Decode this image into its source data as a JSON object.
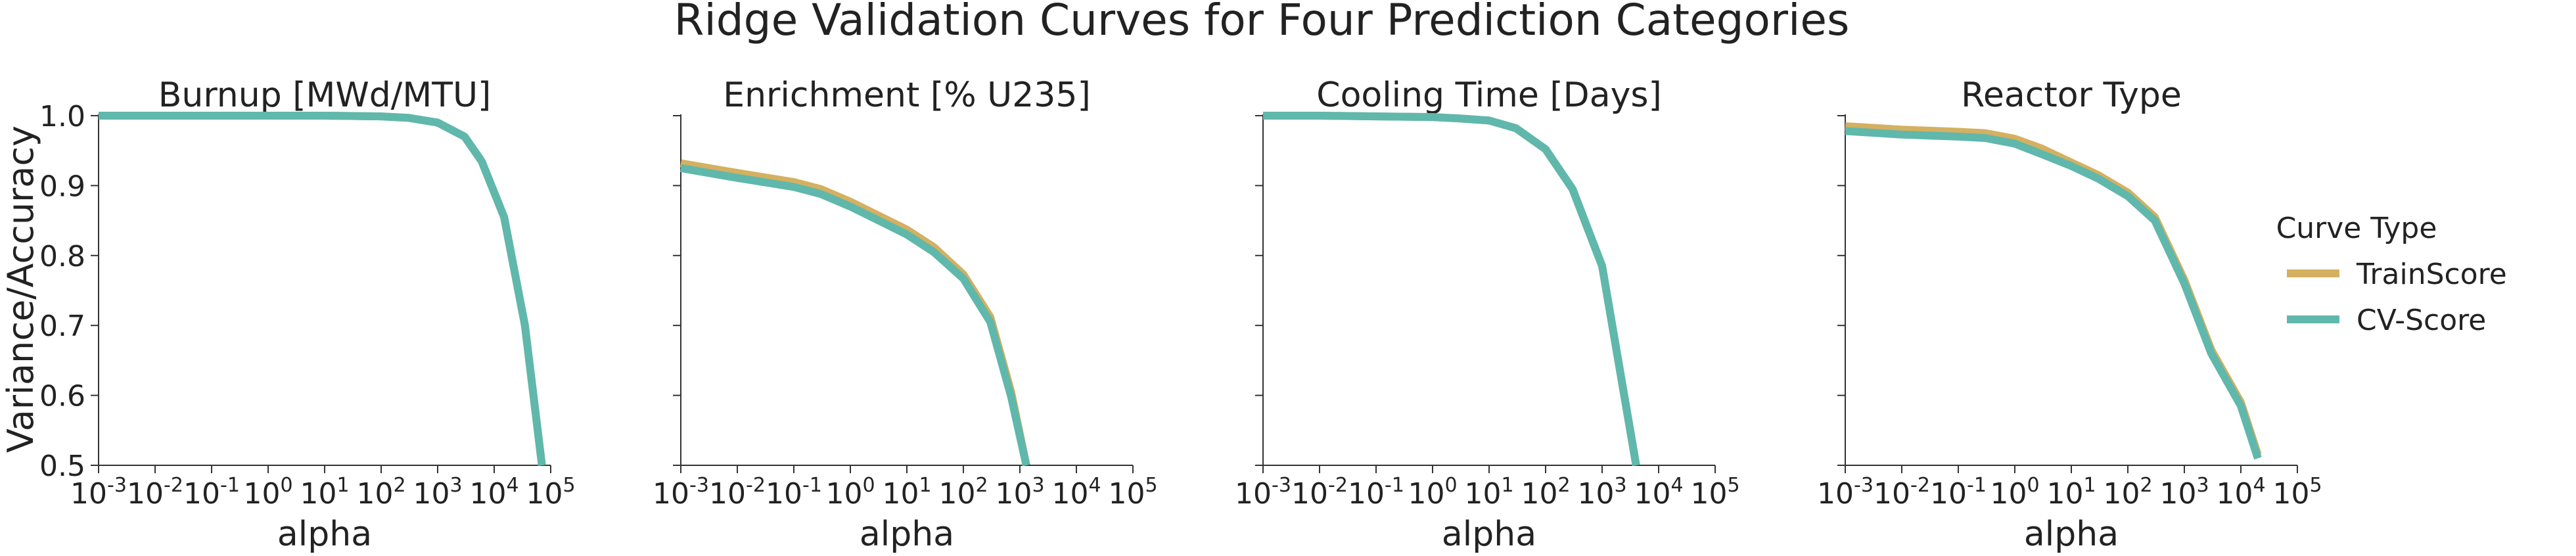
{
  "figure": {
    "title": "Ridge Validation Curves for Four Prediction Categories",
    "shared_ylabel": "Variance/Accuracy"
  },
  "legend": {
    "title": "Curve Type",
    "placement": "right",
    "entries": [
      {
        "label": "TrainScore",
        "color": "#d4b061"
      },
      {
        "label": "CV-Score",
        "color": "#5fb8ab"
      }
    ]
  },
  "chart_data": [
    {
      "type": "line",
      "title": "Burnup [MWd/MTU]",
      "xlabel": "alpha",
      "ylabel": "Variance/Accuracy",
      "xscale": "log",
      "xlim": [
        0.001,
        100000
      ],
      "ylim": [
        0.5,
        1.0
      ],
      "x_ticks": [
        "10^-3",
        "10^-2",
        "10^-1",
        "10^0",
        "10^1",
        "10^2",
        "10^3",
        "10^4",
        "10^5"
      ],
      "y_ticks": [
        "0.5",
        "0.6",
        "0.7",
        "0.8",
        "0.9",
        "1.0"
      ],
      "grid": false,
      "series": [
        {
          "name": "TrainScore",
          "color": "#d4b061",
          "x": [
            0.001,
            0.01,
            0.1,
            1,
            10,
            100,
            300,
            1000,
            3000,
            6000,
            15000,
            35000,
            70000
          ],
          "y": [
            1.0,
            1.0,
            1.0,
            1.0,
            1.0,
            0.999,
            0.997,
            0.99,
            0.97,
            0.935,
            0.855,
            0.7,
            0.5
          ]
        },
        {
          "name": "CV-Score",
          "color": "#5fb8ab",
          "x": [
            0.001,
            0.01,
            0.1,
            1,
            10,
            100,
            300,
            1000,
            3000,
            6000,
            15000,
            35000,
            70000
          ],
          "y": [
            1.0,
            1.0,
            1.0,
            1.0,
            1.0,
            0.999,
            0.997,
            0.99,
            0.97,
            0.935,
            0.855,
            0.7,
            0.5
          ]
        }
      ]
    },
    {
      "type": "line",
      "title": "Enrichment [% U235]",
      "xlabel": "alpha",
      "xscale": "log",
      "xlim": [
        0.001,
        100000
      ],
      "ylim": [
        0.5,
        1.0
      ],
      "x_ticks": [
        "10^-3",
        "10^-2",
        "10^-1",
        "10^0",
        "10^1",
        "10^2",
        "10^3",
        "10^4",
        "10^5"
      ],
      "grid": false,
      "series": [
        {
          "name": "TrainScore",
          "color": "#d4b061",
          "x": [
            0.001,
            0.01,
            0.1,
            0.3,
            1,
            3,
            10,
            30,
            100,
            300,
            700,
            1300
          ],
          "y": [
            0.932,
            0.918,
            0.905,
            0.895,
            0.877,
            0.858,
            0.837,
            0.812,
            0.773,
            0.712,
            0.605,
            0.5
          ]
        },
        {
          "name": "CV-Score",
          "color": "#5fb8ab",
          "x": [
            0.001,
            0.01,
            0.1,
            0.3,
            1,
            3,
            10,
            30,
            100,
            300,
            700,
            1300
          ],
          "y": [
            0.925,
            0.911,
            0.898,
            0.888,
            0.87,
            0.851,
            0.83,
            0.805,
            0.767,
            0.705,
            0.598,
            0.5
          ]
        }
      ]
    },
    {
      "type": "line",
      "title": "Cooling Time [Days]",
      "xlabel": "alpha",
      "xscale": "log",
      "xlim": [
        0.001,
        100000
      ],
      "ylim": [
        0.5,
        1.0
      ],
      "x_ticks": [
        "10^-3",
        "10^-2",
        "10^-1",
        "10^0",
        "10^1",
        "10^2",
        "10^3",
        "10^4",
        "10^5"
      ],
      "grid": false,
      "series": [
        {
          "name": "TrainScore",
          "color": "#d4b061",
          "x": [
            0.001,
            0.01,
            0.1,
            1,
            3,
            10,
            30,
            100,
            300,
            1000,
            4000
          ],
          "y": [
            1.0,
            1.0,
            0.999,
            0.998,
            0.996,
            0.993,
            0.982,
            0.952,
            0.895,
            0.785,
            0.5
          ]
        },
        {
          "name": "CV-Score",
          "color": "#5fb8ab",
          "x": [
            0.001,
            0.01,
            0.1,
            1,
            3,
            10,
            30,
            100,
            300,
            1000,
            4000
          ],
          "y": [
            1.0,
            1.0,
            0.999,
            0.998,
            0.996,
            0.993,
            0.982,
            0.952,
            0.895,
            0.785,
            0.5
          ]
        }
      ]
    },
    {
      "type": "line",
      "title": "Reactor Type",
      "xlabel": "alpha",
      "xscale": "log",
      "xlim": [
        0.001,
        100000
      ],
      "ylim": [
        0.5,
        1.0
      ],
      "x_ticks": [
        "10^-3",
        "10^-2",
        "10^-1",
        "10^0",
        "10^1",
        "10^2",
        "10^3",
        "10^4",
        "10^5"
      ],
      "grid": false,
      "series": [
        {
          "name": "TrainScore",
          "color": "#d4b061",
          "x": [
            0.001,
            0.01,
            0.1,
            0.3,
            1,
            3,
            10,
            30,
            100,
            300,
            1000,
            3000,
            10000,
            20000
          ],
          "y": [
            0.985,
            0.98,
            0.977,
            0.975,
            0.967,
            0.953,
            0.933,
            0.915,
            0.89,
            0.855,
            0.765,
            0.665,
            0.59,
            0.515
          ]
        },
        {
          "name": "CV-Score",
          "color": "#5fb8ab",
          "x": [
            0.001,
            0.01,
            0.1,
            0.3,
            1,
            3,
            10,
            30,
            100,
            300,
            1000,
            3000,
            10000,
            20000
          ],
          "y": [
            0.978,
            0.973,
            0.97,
            0.968,
            0.96,
            0.945,
            0.928,
            0.91,
            0.885,
            0.85,
            0.76,
            0.66,
            0.585,
            0.51
          ]
        }
      ]
    }
  ]
}
